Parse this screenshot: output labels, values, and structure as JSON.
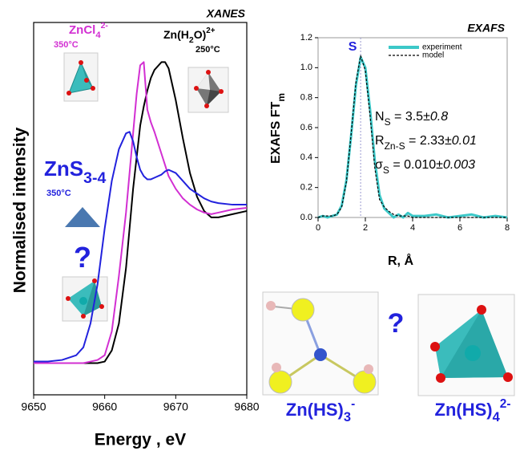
{
  "chart_data": [
    {
      "type": "line",
      "title": "XANES",
      "x_label": "Energy , eV",
      "y_label": "Normalised intensity",
      "x": [
        9650,
        9652,
        9654,
        9656,
        9657,
        9658,
        9659,
        9660,
        9661,
        9662,
        9663,
        9663.5,
        9664,
        9664.5,
        9665,
        9665.5,
        9666,
        9666.5,
        9667,
        9668,
        9668.5,
        9669,
        9670,
        9671,
        9672,
        9673,
        9674,
        9675,
        9676,
        9678,
        9680
      ],
      "series": [
        {
          "color": "#000000",
          "values": [
            0,
            0,
            0,
            0,
            0,
            0,
            0,
            0.01,
            0.08,
            0.25,
            0.6,
            0.85,
            1.1,
            1.3,
            1.5,
            1.62,
            1.72,
            1.8,
            1.85,
            1.9,
            1.9,
            1.86,
            1.66,
            1.42,
            1.2,
            1.05,
            0.96,
            0.92,
            0.92,
            0.94,
            0.96
          ]
        },
        {
          "color": "#d22fd2",
          "values": [
            0,
            0,
            0,
            0,
            0,
            0.01,
            0.02,
            0.05,
            0.2,
            0.55,
            0.95,
            1.2,
            1.45,
            1.7,
            1.88,
            1.9,
            1.6,
            1.52,
            1.46,
            1.32,
            1.25,
            1.18,
            1.1,
            1.04,
            1.0,
            0.97,
            0.95,
            0.94,
            0.95,
            0.97,
            0.98
          ]
        },
        {
          "color": "#2222dd",
          "values": [
            0.01,
            0.01,
            0.02,
            0.05,
            0.1,
            0.25,
            0.5,
            0.85,
            1.15,
            1.35,
            1.45,
            1.46,
            1.4,
            1.3,
            1.22,
            1.18,
            1.16,
            1.16,
            1.17,
            1.19,
            1.21,
            1.22,
            1.2,
            1.15,
            1.1,
            1.07,
            1.04,
            1.02,
            1.01,
            1.0,
            1.0
          ]
        }
      ],
      "xlim": [
        9650,
        9680
      ],
      "xticks": [
        9650,
        9660,
        9670,
        9680
      ],
      "ylim": [
        -0.2,
        2.15
      ],
      "annotations": [
        {
          "color": "#d22fd2",
          "parts": [
            {
              "text": "ZnCl"
            },
            {
              "text": "4",
              "style": "sub"
            },
            {
              "text": "2-",
              "style": "sup"
            }
          ]
        },
        {
          "color": "#d22fd2",
          "parts": [
            {
              "text": "350°C"
            }
          ]
        },
        {
          "color": "#000000",
          "parts": [
            {
              "text": "Zn(H"
            },
            {
              "text": "2",
              "style": "sub"
            },
            {
              "text": "O)"
            },
            {
              "text": "2+",
              "style": "sup"
            }
          ]
        },
        {
          "color": "#000000",
          "parts": [
            {
              "text": "250°C"
            }
          ]
        },
        {
          "color": "#2222dd",
          "parts": [
            {
              "text": "ZnS"
            },
            {
              "text": "3-4",
              "style": "sub"
            }
          ]
        },
        {
          "color": "#2222dd",
          "parts": [
            {
              "text": "350°C"
            }
          ]
        },
        {
          "color": "#2222dd",
          "parts": [
            {
              "text": "?"
            }
          ]
        }
      ]
    },
    {
      "type": "line",
      "title": "EXAFS",
      "x_label": "R, Å",
      "y_label": {
        "parts": [
          {
            "text": "EXAFS FT"
          },
          {
            "text": "m",
            "style": "sub"
          }
        ]
      },
      "x": [
        0,
        0.2,
        0.4,
        0.6,
        0.8,
        1,
        1.2,
        1.4,
        1.6,
        1.8,
        2,
        2.2,
        2.4,
        2.6,
        2.8,
        3,
        3.2,
        3.4,
        3.6,
        3.8,
        4,
        4.5,
        5,
        5.5,
        6,
        6.5,
        7,
        7.5,
        8
      ],
      "series": [
        {
          "name": "experiment",
          "color": "#3cc8c8",
          "values": [
            0,
            0.01,
            0,
            0.01,
            0.02,
            0.08,
            0.25,
            0.55,
            0.88,
            1.07,
            1.0,
            0.72,
            0.38,
            0.15,
            0.06,
            0.03,
            0,
            0.02,
            0,
            0.03,
            0.01,
            0.01,
            0.02,
            0,
            0.01,
            0.02,
            0,
            0.01,
            0
          ]
        },
        {
          "name": "model",
          "color": "#000000",
          "dash": true,
          "values": [
            0,
            0.01,
            0.01,
            0.01,
            0.02,
            0.07,
            0.24,
            0.56,
            0.9,
            1.08,
            0.98,
            0.68,
            0.33,
            0.12,
            0.07,
            0.04,
            0.02,
            0.01,
            0.01,
            0.01,
            0,
            0,
            0,
            0,
            0,
            0,
            0,
            0,
            0
          ]
        }
      ],
      "xlim": [
        0,
        8
      ],
      "xticks": [
        0,
        2,
        4,
        6,
        8
      ],
      "ylim": [
        0,
        1.2
      ],
      "yticks": [
        {
          "value": 0,
          "label": "0.0"
        },
        0.2,
        0.4,
        0.6,
        0.8,
        {
          "value": 1,
          "label": "1.0"
        },
        1.2
      ],
      "legend": "upper right",
      "reference_lines": [
        {
          "x": 1.8,
          "label": "S",
          "color": "#2222dd"
        }
      ],
      "annotations": [
        {
          "color": "#000000",
          "parts": [
            {
              "text": "N"
            },
            {
              "text": "S",
              "style": "sub"
            },
            {
              "text": " = 3.5"
            },
            {
              "text": "±0.8",
              "style": "italic"
            }
          ]
        },
        {
          "color": "#000000",
          "parts": [
            {
              "text": "R"
            },
            {
              "text": "Zn-S",
              "style": "sub"
            },
            {
              "text": " = 2.33"
            },
            {
              "text": "±0.01",
              "style": "italic"
            }
          ]
        },
        {
          "color": "#000000",
          "parts": [
            {
              "text": "σ"
            },
            {
              "text": "S",
              "style": "sub"
            },
            {
              "text": " = 0.010"
            },
            {
              "text": "±0.003",
              "style": "italic"
            }
          ]
        }
      ]
    }
  ],
  "structures": {
    "question": "?",
    "items": [
      {
        "color": "#2222dd",
        "parts": [
          {
            "text": "Zn(HS)"
          },
          {
            "text": "3",
            "style": "sub"
          },
          {
            "text": "-",
            "style": "sup"
          }
        ]
      },
      {
        "color": "#2222dd",
        "parts": [
          {
            "text": "Zn(HS)"
          },
          {
            "text": "4",
            "style": "sub"
          },
          {
            "text": "2-",
            "style": "sup"
          }
        ]
      }
    ]
  }
}
